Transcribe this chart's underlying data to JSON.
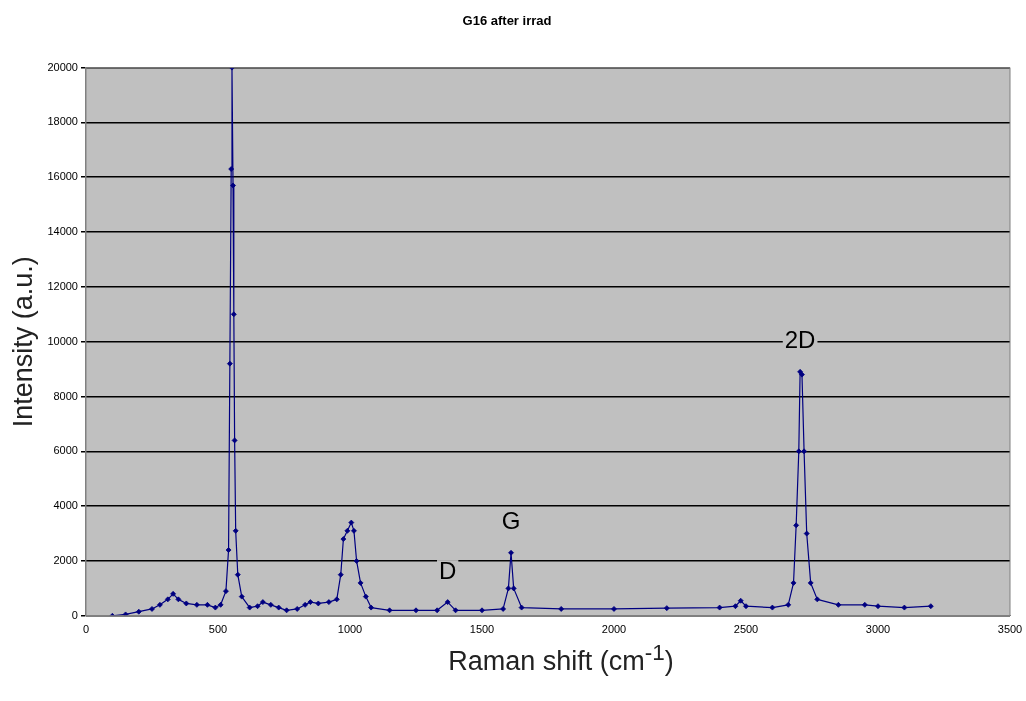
{
  "chart_data": {
    "type": "line",
    "title": "G16 after irrad",
    "xlabel": "Raman shift (cm$^{-1}$)",
    "ylabel": "Intensity (a.u.)",
    "x": [
      100,
      150,
      200,
      250,
      280,
      310,
      330,
      350,
      380,
      420,
      460,
      490,
      510,
      530,
      540,
      545,
      550,
      553,
      557,
      560,
      563,
      567,
      575,
      590,
      620,
      650,
      670,
      700,
      730,
      760,
      800,
      830,
      850,
      880,
      920,
      950,
      965,
      975,
      990,
      1005,
      1015,
      1025,
      1040,
      1060,
      1080,
      1150,
      1250,
      1330,
      1370,
      1400,
      1500,
      1580,
      1600,
      1610,
      1620,
      1650,
      1800,
      2000,
      2200,
      2400,
      2460,
      2480,
      2500,
      2600,
      2660,
      2680,
      2690,
      2700,
      2705,
      2712,
      2720,
      2730,
      2745,
      2770,
      2850,
      2950,
      3000,
      3100,
      3200
    ],
    "series": [
      {
        "color": "#000080",
        "values": [
          0,
          50,
          150,
          250,
          400,
          600,
          800,
          600,
          450,
          400,
          400,
          300,
          400,
          900,
          2400,
          9200,
          16300,
          20000,
          15700,
          11000,
          6400,
          3100,
          1500,
          700,
          300,
          350,
          500,
          400,
          300,
          200,
          250,
          400,
          500,
          450,
          500,
          600,
          1500,
          2800,
          3100,
          3400,
          3100,
          2000,
          1200,
          700,
          300,
          200,
          200,
          200,
          500,
          200,
          200,
          250,
          1000,
          2300,
          1000,
          300,
          250,
          250,
          280,
          300,
          350,
          550,
          350,
          300,
          400,
          1200,
          3300,
          6000,
          8900,
          8800,
          6000,
          3000,
          1200,
          600,
          400,
          400,
          350,
          300,
          350
        ]
      }
    ],
    "xlim": [
      0,
      3500
    ],
    "xticks": [
      0,
      500,
      1000,
      1500,
      2000,
      2500,
      3000,
      3500
    ],
    "ylim": [
      0,
      20000
    ],
    "yticks": [
      0,
      2000,
      4000,
      6000,
      8000,
      10000,
      12000,
      14000,
      16000,
      18000,
      20000
    ],
    "grid": "y",
    "legend": false,
    "marker": "diamond",
    "line_style": "solid",
    "annotations": [
      {
        "text": "D",
        "x": 1370,
        "y": 500
      },
      {
        "text": "G",
        "x": 1610,
        "y": 2300
      },
      {
        "text": "2D",
        "x": 2705,
        "y": 8900
      }
    ]
  }
}
